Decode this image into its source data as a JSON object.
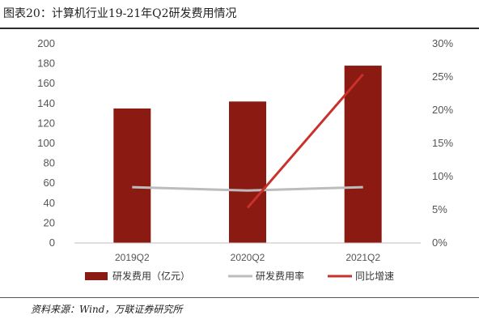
{
  "figure": {
    "title": "图表20：计算机行业19-21年Q2研发费用情况",
    "source": "资料来源：Wind，万联证券研究所"
  },
  "colors": {
    "bar": "#8b1a12",
    "rate_line": "#bcbcbc",
    "yoy_line": "#c9312a"
  },
  "chart_data": {
    "type": "bar",
    "categories": [
      "2019Q2",
      "2020Q2",
      "2021Q2"
    ],
    "left_axis": {
      "ylim": [
        0,
        200
      ],
      "ticks": [
        0,
        20,
        40,
        60,
        80,
        100,
        120,
        140,
        160,
        180,
        200
      ]
    },
    "right_axis": {
      "ylim": [
        0,
        30
      ],
      "ticks": [
        "0%",
        "5%",
        "10%",
        "15%",
        "20%",
        "25%",
        "30%"
      ]
    },
    "series": [
      {
        "name": "研发费用（亿元）",
        "type": "bar",
        "axis": "left",
        "values": [
          135,
          142,
          178
        ]
      },
      {
        "name": "研发费用率",
        "type": "line",
        "axis": "right",
        "values": [
          8.4,
          7.9,
          8.4
        ]
      },
      {
        "name": "同比增速",
        "type": "line",
        "axis": "right",
        "values": [
          null,
          5.3,
          25.4
        ]
      }
    ],
    "legend_position": "bottom",
    "grid": false
  }
}
